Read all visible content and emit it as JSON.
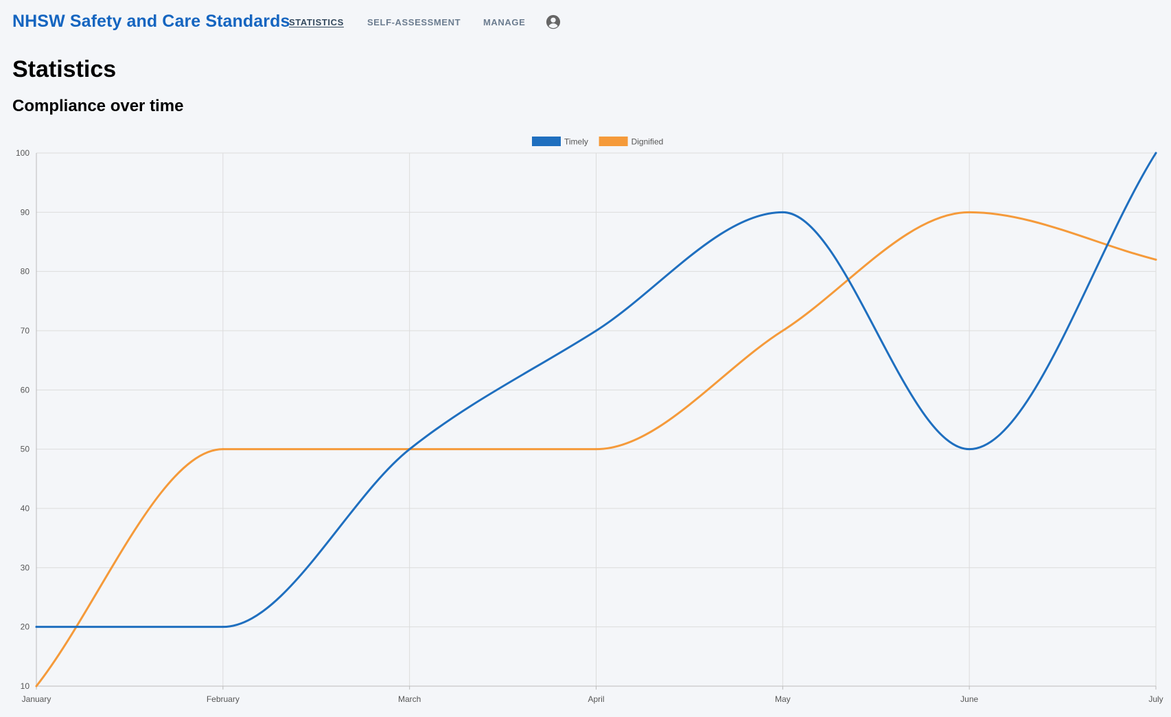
{
  "header": {
    "brand": "NHSW Safety and Care Standards",
    "nav": [
      {
        "label": "STATISTICS",
        "active": true
      },
      {
        "label": "SELF-ASSESSMENT",
        "active": false
      },
      {
        "label": "MANAGE",
        "active": false
      }
    ],
    "account_icon": "account-circle-icon"
  },
  "main": {
    "title": "Statistics",
    "section_title": "Compliance over time"
  },
  "chart_data": {
    "type": "line",
    "categories": [
      "January",
      "February",
      "March",
      "April",
      "May",
      "June",
      "July"
    ],
    "series": [
      {
        "name": "Timely",
        "color": "#1f6fbf",
        "values": [
          20,
          20,
          50,
          70,
          90,
          50,
          100
        ]
      },
      {
        "name": "Dignified",
        "color": "#f59a3a",
        "values": [
          10,
          50,
          50,
          50,
          70,
          90,
          82
        ]
      }
    ],
    "ylim": [
      10,
      100
    ],
    "yticks": [
      10,
      20,
      30,
      40,
      50,
      60,
      70,
      80,
      90,
      100
    ],
    "grid": true,
    "legend": "top-center",
    "smooth": true
  }
}
